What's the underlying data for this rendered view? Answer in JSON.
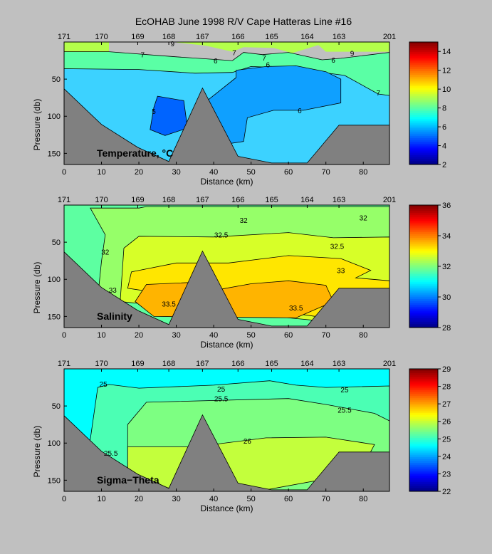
{
  "title": "EcOHAB   June 1998   R/V Cape Hatteras   Line #16",
  "station_labels": [
    "171",
    "170",
    "169",
    "168",
    "167",
    "166",
    "165",
    "164",
    "163",
    "201"
  ],
  "station_km": [
    0,
    10,
    19.7,
    28,
    37,
    46.5,
    55.5,
    65,
    73.5,
    87
  ],
  "xlabel": "Distance (km)",
  "ylabel": "Pressure (db)",
  "x_ticks": [
    0,
    10,
    20,
    30,
    40,
    50,
    60,
    70,
    80
  ],
  "y_ticks": [
    50,
    100,
    150
  ],
  "chart_data": [
    {
      "type": "heatmap",
      "label": "Temperature, °C",
      "xlim": [
        0,
        87
      ],
      "ylim": [
        0,
        165
      ],
      "y_reversed": true,
      "colormap": "jet",
      "colorbar": {
        "min": 2,
        "max": 15,
        "ticks": [
          2,
          4,
          6,
          8,
          10,
          12,
          14
        ]
      },
      "levels": [
        {
          "value": 9,
          "color": "#b4ff4b"
        },
        {
          "value": 8,
          "color": "#5affa5"
        },
        {
          "value": 7,
          "color": "#3cd2ff"
        },
        {
          "value": 6,
          "color": "#0fa0ff"
        },
        {
          "value": 5,
          "color": "#0064ff"
        }
      ],
      "contour_labels": [
        {
          "text": "9",
          "x": 29,
          "y": 2
        },
        {
          "text": "7",
          "x": 21,
          "y": 17
        },
        {
          "text": "6",
          "x": 40.5,
          "y": 25
        },
        {
          "text": "7",
          "x": 45.5,
          "y": 14
        },
        {
          "text": "7",
          "x": 53.5,
          "y": 21
        },
        {
          "text": "6",
          "x": 54.5,
          "y": 30
        },
        {
          "text": "9",
          "x": 77,
          "y": 15
        },
        {
          "text": "6",
          "x": 72,
          "y": 24
        },
        {
          "text": "7",
          "x": 84,
          "y": 68
        },
        {
          "text": "6",
          "x": 63,
          "y": 92
        },
        {
          "text": "5",
          "x": 24,
          "y": 93
        }
      ]
    },
    {
      "type": "heatmap",
      "label": "Salinity",
      "xlim": [
        0,
        87
      ],
      "ylim": [
        0,
        165
      ],
      "y_reversed": true,
      "colormap": "jet",
      "colorbar": {
        "min": 28,
        "max": 36,
        "ticks": [
          28,
          30,
          32,
          34,
          36
        ]
      },
      "levels": [
        {
          "value": 31.5,
          "color": "#5dffa1"
        },
        {
          "value": 32,
          "color": "#96ff69"
        },
        {
          "value": 32.5,
          "color": "#d7ff28"
        },
        {
          "value": 33,
          "color": "#ffe600"
        },
        {
          "value": 33.5,
          "color": "#ffb400"
        }
      ],
      "contour_labels": [
        {
          "text": "32",
          "x": 48,
          "y": 20
        },
        {
          "text": "32",
          "x": 80,
          "y": 17
        },
        {
          "text": "32",
          "x": 11,
          "y": 63
        },
        {
          "text": "32.5",
          "x": 42,
          "y": 40
        },
        {
          "text": "32.5",
          "x": 73,
          "y": 55
        },
        {
          "text": "33",
          "x": 74,
          "y": 88
        },
        {
          "text": "33.5",
          "x": 28,
          "y": 133
        },
        {
          "text": "33.5",
          "x": 62,
          "y": 138
        },
        {
          "text": "33",
          "x": 13,
          "y": 114
        }
      ]
    },
    {
      "type": "heatmap",
      "label": "Sigma−Theta",
      "xlim": [
        0,
        87
      ],
      "ylim": [
        0,
        165
      ],
      "y_reversed": true,
      "colormap": "jet",
      "colorbar": {
        "min": 22,
        "max": 29,
        "ticks": [
          22,
          23,
          24,
          25,
          26,
          27,
          28,
          29
        ]
      },
      "levels": [
        {
          "value": 24.5,
          "color": "#00ffff"
        },
        {
          "value": 25,
          "color": "#4bffb4"
        },
        {
          "value": 25.5,
          "color": "#7dff82"
        },
        {
          "value": 26,
          "color": "#c3ff3c"
        }
      ],
      "contour_labels": [
        {
          "text": "25",
          "x": 10.5,
          "y": 20
        },
        {
          "text": "25",
          "x": 42,
          "y": 27
        },
        {
          "text": "25.5",
          "x": 42,
          "y": 40
        },
        {
          "text": "25",
          "x": 75,
          "y": 28
        },
        {
          "text": "25.5",
          "x": 75,
          "y": 55
        },
        {
          "text": "26",
          "x": 49,
          "y": 97
        },
        {
          "text": "25.5",
          "x": 12.5,
          "y": 113
        }
      ]
    }
  ]
}
